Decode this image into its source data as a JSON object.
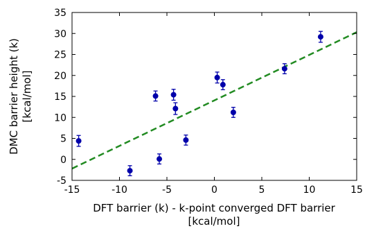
{
  "chart_data": {
    "type": "scatter",
    "xlabel": [
      "DFT barrier (k) - k-point converged DFT barrier",
      "[kcal/mol]"
    ],
    "ylabel": [
      "DMC barrier height (k)",
      "[kcal/mol]"
    ],
    "xlim": [
      -15,
      15
    ],
    "ylim": [
      -5,
      35
    ],
    "xticks": [
      -15,
      -10,
      -5,
      0,
      5,
      10,
      15
    ],
    "yticks": [
      -5,
      0,
      5,
      10,
      15,
      20,
      25,
      30,
      35
    ],
    "grid": false,
    "colors": {
      "points": "#0000aa",
      "fit": "#228b22"
    },
    "points": [
      {
        "x": -14.3,
        "y": 4.4,
        "err": 1.3
      },
      {
        "x": -8.9,
        "y": -2.7,
        "err": 1.2
      },
      {
        "x": -6.2,
        "y": 15.1,
        "err": 1.2
      },
      {
        "x": -5.8,
        "y": 0.1,
        "err": 1.2
      },
      {
        "x": -4.3,
        "y": 15.4,
        "err": 1.3
      },
      {
        "x": -4.1,
        "y": 12.1,
        "err": 1.4
      },
      {
        "x": -3.0,
        "y": 4.6,
        "err": 1.2
      },
      {
        "x": 0.3,
        "y": 19.5,
        "err": 1.3
      },
      {
        "x": 0.9,
        "y": 17.8,
        "err": 1.2
      },
      {
        "x": 2.0,
        "y": 11.2,
        "err": 1.2
      },
      {
        "x": 7.4,
        "y": 21.6,
        "err": 1.2
      },
      {
        "x": 11.2,
        "y": 29.2,
        "err": 1.3
      }
    ],
    "fit_line": {
      "x": [
        -15,
        15
      ],
      "y": [
        -2.2,
        30.3
      ],
      "style": "dashed"
    }
  }
}
